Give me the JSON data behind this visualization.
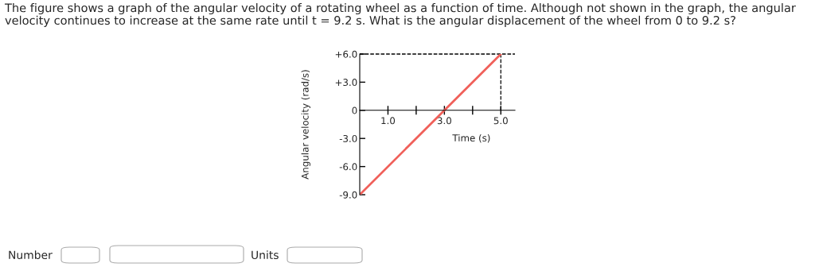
{
  "chart_data": {
    "type": "line",
    "title": "The figure shows a graph of the angular velocity of a rotating wheel as a function of time. Although not shown in the graph, the angular\nvelocity continues to increase at the same rate until t = 9.2 s. What is the angular displacement of the wheel from 0 to 9.2 s?",
    "xlabel": "Time (s)",
    "ylabel": "Angular velocity (rad/s)",
    "series": [
      {
        "color": "#f0605a",
        "x": [
          0,
          5
        ],
        "values": [
          -9,
          6
        ]
      }
    ],
    "xlim": [
      0,
      5.5
    ],
    "xticks": [
      {
        "value": 1,
        "label": "1.0"
      },
      {
        "value": 2,
        "label": null
      },
      {
        "value": 3,
        "label": "3.0"
      },
      {
        "value": 4,
        "label": null
      },
      {
        "value": 5,
        "label": "5.0"
      }
    ],
    "ylim": [
      -9,
      6
    ],
    "yticks": [
      {
        "value": 6,
        "label": "+6.0"
      },
      {
        "value": 3,
        "label": "+3.0"
      },
      0,
      {
        "value": -3,
        "label": "-3.0"
      },
      {
        "value": -6,
        "label": "-6.0"
      },
      {
        "value": -9,
        "label": "-9.0"
      }
    ],
    "ref_lines": [
      {
        "axis": "y",
        "value": 6,
        "color": "#000000",
        "line_style": "dashed"
      },
      {
        "axis": "x",
        "value": 5,
        "color": "#000000",
        "line_style": "dashed"
      }
    ],
    "annotations": [
      "Number",
      "Units"
    ],
    "grid": false,
    "legend": false
  }
}
